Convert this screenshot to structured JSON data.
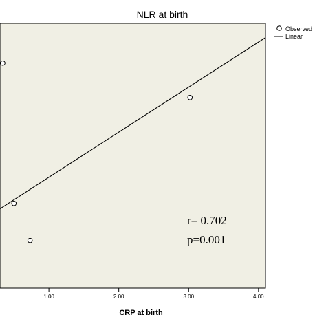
{
  "chart_data": {
    "type": "scatter",
    "title": "NLR at birth",
    "xlabel": "CRP at birth",
    "ylabel": "",
    "xlim": [
      0.3,
      4.1
    ],
    "ylim": [
      0,
      10
    ],
    "x_ticks": [
      {
        "value": 1.0,
        "label": "1.00"
      },
      {
        "value": 2.0,
        "label": "2.00"
      },
      {
        "value": 3.0,
        "label": "3.00"
      },
      {
        "value": 4.0,
        "label": "4.00"
      }
    ],
    "grid": false,
    "legend": {
      "position": "top-right",
      "entries": [
        {
          "label": "Observed",
          "marker": "circle"
        },
        {
          "label": "Linear",
          "marker": "line"
        }
      ]
    },
    "series": [
      {
        "name": "Observed",
        "kind": "scatter",
        "x": [
          0.3,
          0.5,
          0.73,
          3.02
        ],
        "y": [
          8.5,
          3.2,
          1.8,
          7.2
        ]
      },
      {
        "name": "Linear",
        "kind": "line",
        "x": [
          0.3,
          4.15
        ],
        "y": [
          3.0,
          9.55
        ]
      }
    ],
    "annotations": [
      "r= 0.702",
      "p=0.001"
    ],
    "colors": {
      "plot_background": "#f0efe4",
      "axis": "#000000",
      "marker_fill": "#ffffff"
    }
  }
}
